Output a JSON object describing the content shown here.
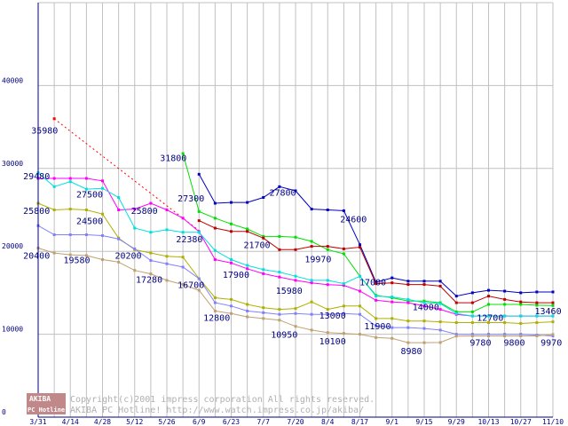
{
  "chart_data": {
    "type": "line",
    "title": "",
    "xlabel": "",
    "ylabel": "",
    "ylim": [
      0,
      50000
    ],
    "yticks": [
      0,
      10000,
      20000,
      30000,
      40000,
      50000
    ],
    "ytick_labels": [
      "0",
      "10000",
      "20000",
      "30000",
      "40000",
      "50000"
    ],
    "grid": true,
    "categories": [
      "3/31",
      "4/7",
      "4/14",
      "4/21",
      "4/28",
      "5/5",
      "5/12",
      "5/19",
      "5/26",
      "6/2",
      "6/9",
      "6/16",
      "6/23",
      "6/30",
      "7/7",
      "7/14",
      "7/20",
      "7/27",
      "8/4",
      "8/11",
      "8/17",
      "8/24",
      "9/1",
      "9/8",
      "9/15",
      "9/22",
      "9/29",
      "10/6",
      "10/13",
      "10/20",
      "10/27",
      "11/3",
      "11/10"
    ],
    "x_tick_labels": [
      "3/31",
      "4/14",
      "4/28",
      "5/12",
      "5/26",
      "6/9",
      "6/23",
      "7/7",
      "7/20",
      "8/4",
      "8/17",
      "9/1",
      "9/15",
      "9/29",
      "10/13",
      "10/27",
      "11/10"
    ],
    "series": [
      {
        "name": "dotted-estimate",
        "color": "#ff0000",
        "style": "dotted",
        "values": [
          null,
          36000,
          null,
          null,
          null,
          null,
          null,
          null,
          null,
          null,
          22500,
          null,
          null,
          null,
          null,
          null,
          null,
          null,
          null,
          null,
          null,
          null,
          null,
          null,
          null,
          null,
          null,
          null,
          null,
          null,
          null,
          null,
          null
        ]
      },
      {
        "name": "blue",
        "color": "#0000c0",
        "style": "solid",
        "values": [
          null,
          null,
          null,
          null,
          null,
          null,
          null,
          null,
          null,
          null,
          29300,
          25800,
          25900,
          25900,
          26500,
          27800,
          27300,
          25100,
          25000,
          24900,
          20800,
          16300,
          16800,
          16400,
          16400,
          16400,
          14600,
          15000,
          15300,
          15200,
          15000,
          15100,
          15100
        ]
      },
      {
        "name": "green",
        "color": "#00e000",
        "style": "solid",
        "values": [
          null,
          null,
          null,
          null,
          null,
          null,
          null,
          null,
          null,
          31800,
          24800,
          24000,
          23300,
          22700,
          21800,
          21800,
          21700,
          21200,
          20200,
          19700,
          17000,
          14700,
          14400,
          14000,
          14000,
          13800,
          12700,
          12700,
          13600,
          13600,
          13600,
          13500,
          13460
        ]
      },
      {
        "name": "red",
        "color": "#c00000",
        "style": "solid",
        "values": [
          null,
          null,
          null,
          null,
          null,
          null,
          null,
          null,
          null,
          null,
          23700,
          22800,
          22400,
          22400,
          21600,
          20200,
          20200,
          20600,
          20600,
          20300,
          20500,
          16100,
          16200,
          16000,
          16000,
          15800,
          13800,
          13800,
          14600,
          14200,
          13900,
          13800,
          13800
        ]
      },
      {
        "name": "magenta",
        "color": "#ff00ff",
        "style": "solid",
        "values": [
          28800,
          28800,
          28800,
          28800,
          28500,
          25000,
          25100,
          25800,
          25000,
          24000,
          22380,
          19000,
          18600,
          17900,
          17300,
          16900,
          16500,
          16200,
          15980,
          15900,
          15200,
          14100,
          13900,
          13800,
          13400,
          13000,
          12400,
          12200,
          12200,
          12200,
          12200,
          12200,
          12200
        ]
      },
      {
        "name": "cyan",
        "color": "#00e0e0",
        "style": "solid",
        "values": [
          29480,
          27800,
          28400,
          27500,
          27600,
          26500,
          22800,
          22300,
          22600,
          22300,
          22300,
          20100,
          19000,
          18300,
          17800,
          17500,
          17000,
          16500,
          16500,
          16100,
          17000,
          14600,
          14500,
          14200,
          13800,
          13700,
          12500,
          12200,
          12200,
          12200,
          12200,
          12200,
          12200
        ]
      },
      {
        "name": "olive",
        "color": "#b0b000",
        "style": "solid",
        "values": [
          25800,
          25000,
          25100,
          25000,
          24500,
          21600,
          20200,
          19800,
          19400,
          19300,
          16700,
          14400,
          14200,
          13600,
          13200,
          13000,
          13100,
          13900,
          13000,
          13400,
          13400,
          11900,
          11900,
          11600,
          11600,
          11500,
          11400,
          11400,
          11400,
          11400,
          11300,
          11400,
          11500
        ]
      },
      {
        "name": "lavender",
        "color": "#8080ff",
        "style": "solid",
        "values": [
          23100,
          22000,
          22000,
          22000,
          21900,
          21500,
          20300,
          18900,
          18500,
          18100,
          16700,
          13800,
          13400,
          12800,
          12600,
          12400,
          12500,
          12400,
          12400,
          12500,
          12400,
          11000,
          10800,
          10800,
          10700,
          10500,
          10000,
          10000,
          10000,
          10000,
          10000,
          9900,
          9800
        ]
      },
      {
        "name": "tan",
        "color": "#c0a070",
        "style": "solid",
        "values": [
          20400,
          19800,
          19580,
          19500,
          19000,
          18700,
          17700,
          17280,
          16500,
          16000,
          15300,
          12800,
          12500,
          12100,
          11900,
          11700,
          10950,
          10500,
          10200,
          10100,
          10000,
          9600,
          9500,
          8980,
          8980,
          9000,
          9780,
          9800,
          9800,
          9800,
          9800,
          9800,
          9970
        ]
      }
    ],
    "data_labels": [
      {
        "text": "35980",
        "i": 0.4,
        "v": 34200
      },
      {
        "text": "29480",
        "i": -0.1,
        "v": 28700
      },
      {
        "text": "27500",
        "i": 3.2,
        "v": 26500
      },
      {
        "text": "31800",
        "i": 8.4,
        "v": 30900
      },
      {
        "text": "27300",
        "i": 9.5,
        "v": 26000
      },
      {
        "text": "27800",
        "i": 15.2,
        "v": 26700
      },
      {
        "text": "25800",
        "i": -0.1,
        "v": 24500
      },
      {
        "text": "24500",
        "i": 3.2,
        "v": 23300
      },
      {
        "text": "25800",
        "i": 6.6,
        "v": 24500
      },
      {
        "text": "24600",
        "i": 19.6,
        "v": 23500
      },
      {
        "text": "22380",
        "i": 9.4,
        "v": 21100
      },
      {
        "text": "21700",
        "i": 13.6,
        "v": 20400
      },
      {
        "text": "19970",
        "i": 17.4,
        "v": 18700
      },
      {
        "text": "20400",
        "i": -0.1,
        "v": 19100
      },
      {
        "text": "19580",
        "i": 2.4,
        "v": 18600
      },
      {
        "text": "20200",
        "i": 5.6,
        "v": 19100
      },
      {
        "text": "17900",
        "i": 12.3,
        "v": 16800
      },
      {
        "text": "15980",
        "i": 15.6,
        "v": 14900
      },
      {
        "text": "17000",
        "i": 20.8,
        "v": 15900
      },
      {
        "text": "17280",
        "i": 6.9,
        "v": 16200
      },
      {
        "text": "16700",
        "i": 9.5,
        "v": 15600
      },
      {
        "text": "12800",
        "i": 11.1,
        "v": 11600
      },
      {
        "text": "13000",
        "i": 18.3,
        "v": 11900
      },
      {
        "text": "14000",
        "i": 24.1,
        "v": 12900
      },
      {
        "text": "13460",
        "i": 31.7,
        "v": 12400
      },
      {
        "text": "12700",
        "i": 28.1,
        "v": 11600
      },
      {
        "text": "11900",
        "i": 21.1,
        "v": 10600
      },
      {
        "text": "10950",
        "i": 15.3,
        "v": 9600
      },
      {
        "text": "10100",
        "i": 18.3,
        "v": 8800
      },
      {
        "text": "8980",
        "i": 23.2,
        "v": 7600
      },
      {
        "text": "9780",
        "i": 27.5,
        "v": 8600
      },
      {
        "text": "9800",
        "i": 29.6,
        "v": 8600
      },
      {
        "text": "9970",
        "i": 31.9,
        "v": 8600
      }
    ]
  },
  "watermark": {
    "logo_top": "AKIBA",
    "logo_bottom": "PC Hotline!",
    "line1": "Copyright(c)2001 impress corporation All rights reserved.",
    "line2": "AKIBA PC Hotline! http://www.watch.impress.co.jp/akiba/"
  },
  "colors": {
    "axis": "#000080",
    "grid": "#c0c0c0",
    "background": "#ffffff",
    "logo_bg": "#c08888"
  }
}
